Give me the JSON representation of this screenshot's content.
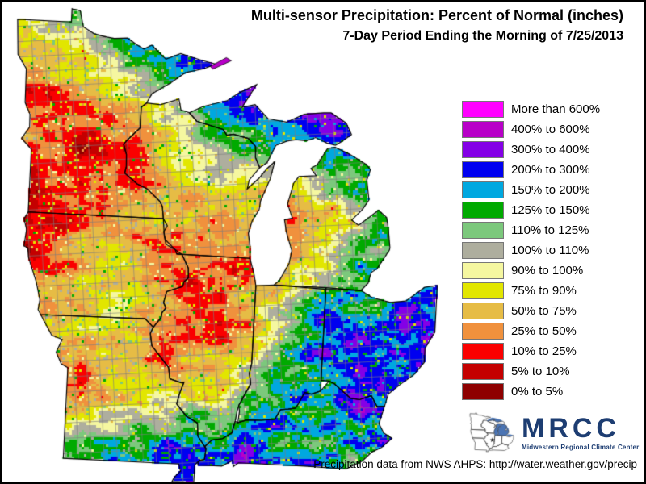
{
  "title": "Multi-sensor Precipitation: Percent of Normal (inches)",
  "subtitle": "7-Day Period Ending the Morning of 7/25/2013",
  "footer": "Precipitation data from NWS AHPS:  http://water.weather.gov/precip",
  "logo": {
    "name": "MRCC",
    "caption": "Midwestern Regional Climate Center",
    "color": "#1d3d72",
    "lake_color": "#4a74b4"
  },
  "legend": {
    "items": [
      {
        "label": "More than 600%",
        "color": "#FF00FF"
      },
      {
        "label": "400% to 600%",
        "color": "#B800C8"
      },
      {
        "label": "300% to 400%",
        "color": "#8400E6"
      },
      {
        "label": "200% to 300%",
        "color": "#0000F0"
      },
      {
        "label": "150% to 200%",
        "color": "#00A8E0"
      },
      {
        "label": "125% to 150%",
        "color": "#00AA00"
      },
      {
        "label": "110% to 125%",
        "color": "#7CC87C"
      },
      {
        "label": "100% to 110%",
        "color": "#AEAE9E"
      },
      {
        "label": "90% to 100%",
        "color": "#F5F7A0"
      },
      {
        "label": "75% to 90%",
        "color": "#E2E600"
      },
      {
        "label": "50% to 75%",
        "color": "#E6BC45"
      },
      {
        "label": "25% to 50%",
        "color": "#F0913D"
      },
      {
        "label": "10% to 25%",
        "color": "#FA0000"
      },
      {
        "label": "5% to 10%",
        "color": "#C40000"
      },
      {
        "label": "0% to 5%",
        "color": "#8E0000"
      }
    ],
    "swatch_border": "#777777"
  },
  "map": {
    "type": "choropleth-raster",
    "region": "US Midwest: MN, WI, MI, IA, IL, IN, OH, MO, KY; Great Lakes shown white",
    "county_line_color": "#7d7d7d",
    "state_line_color": "#000000",
    "anchor_format": "[lon, lat, legend_class_index_mean, spread]",
    "anchors": [
      [
        -96.9,
        48.7,
        10.5,
        2
      ],
      [
        -95.6,
        48.85,
        3.8,
        1.6
      ],
      [
        -93.6,
        48.45,
        4.6,
        2
      ],
      [
        -90.6,
        47.95,
        2.8,
        1.1
      ],
      [
        -91.7,
        47.3,
        3.4,
        1.6
      ],
      [
        -92.5,
        46.9,
        4.2,
        1.6
      ],
      [
        -96.6,
        47.6,
        12.3,
        1.1
      ],
      [
        -95.4,
        47.2,
        12.6,
        1.4
      ],
      [
        -96.35,
        45.9,
        12.8,
        1.2
      ],
      [
        -94.9,
        46.2,
        13.2,
        1.2
      ],
      [
        -93.9,
        46.2,
        14,
        0.8
      ],
      [
        -96.2,
        46.1,
        5.5,
        1.2
      ],
      [
        -96.1,
        44.7,
        12.8,
        1.2
      ],
      [
        -94.3,
        44.9,
        12.2,
        1.5
      ],
      [
        -93,
        45.2,
        13.6,
        1.1
      ],
      [
        -96,
        43.9,
        13.2,
        1.1
      ],
      [
        -95.5,
        43.8,
        13.6,
        0.9
      ],
      [
        -94,
        43.8,
        11.6,
        1.6
      ],
      [
        -92.3,
        43.9,
        12,
        1.5
      ],
      [
        -92.2,
        46.3,
        13.6,
        0.9
      ],
      [
        -91.3,
        45.8,
        12.8,
        1.2
      ],
      [
        -90,
        45.6,
        12.2,
        1.4
      ],
      [
        -89.8,
        45.95,
        4.2,
        1.8
      ],
      [
        -88.6,
        45.7,
        3.5,
        1.8
      ],
      [
        -91.5,
        45,
        12.6,
        1.3
      ],
      [
        -90.3,
        44.9,
        12.4,
        1.4
      ],
      [
        -89.3,
        44.9,
        10.8,
        1.8
      ],
      [
        -89.2,
        44.6,
        3.8,
        1.4
      ],
      [
        -87.6,
        44.6,
        12.6,
        1.4
      ],
      [
        -91.1,
        43.4,
        10.6,
        1.9
      ],
      [
        -89.8,
        43.3,
        11.4,
        1.8
      ],
      [
        -89.5,
        43.6,
        7,
        2.6
      ],
      [
        -88.4,
        43.3,
        11.8,
        1.7
      ],
      [
        -87.95,
        42.8,
        12.2,
        1.5
      ],
      [
        -90,
        46.4,
        2.6,
        1
      ],
      [
        -89,
        46.2,
        2.2,
        1
      ],
      [
        -88,
        46.3,
        1.6,
        0.9
      ],
      [
        -86.6,
        46.3,
        0.8,
        0.8
      ],
      [
        -85.6,
        46.35,
        2,
        1
      ],
      [
        -84.8,
        46.35,
        2.8,
        1.2
      ],
      [
        -88.3,
        47.15,
        4.5,
        2
      ],
      [
        -89.3,
        48,
        1,
        0.5
      ],
      [
        -84.9,
        45.4,
        3.2,
        1.3
      ],
      [
        -83.8,
        45,
        3.8,
        1.5
      ],
      [
        -86.1,
        44.35,
        13.5,
        1
      ],
      [
        -84.7,
        44.3,
        4.5,
        2
      ],
      [
        -83.6,
        43.85,
        4.2,
        1.8
      ],
      [
        -86.15,
        43.55,
        13,
        1.2
      ],
      [
        -84.9,
        43.4,
        10.8,
        2
      ],
      [
        -83.9,
        42.9,
        9.5,
        2.3
      ],
      [
        -86.1,
        42.45,
        12.9,
        1.3
      ],
      [
        -84.7,
        41.95,
        2.6,
        1.5
      ],
      [
        -83.5,
        42.1,
        6,
        2.6
      ],
      [
        -95.9,
        42.9,
        13.5,
        1.2
      ],
      [
        -94.9,
        42.4,
        12.3,
        1.4
      ],
      [
        -93.4,
        43.05,
        4.5,
        1.8
      ],
      [
        -92.4,
        42.9,
        11.3,
        1.5
      ],
      [
        -91.8,
        42.5,
        11.2,
        1.5
      ],
      [
        -95.3,
        41.6,
        11.3,
        1.5
      ],
      [
        -93.8,
        41.8,
        11,
        1.5
      ],
      [
        -92.2,
        41.6,
        11,
        1.7
      ],
      [
        -90.9,
        41.8,
        11.5,
        1.5
      ],
      [
        -93.9,
        40.95,
        3.8,
        1.8
      ],
      [
        -92.6,
        40.85,
        4.6,
        2
      ],
      [
        -95.2,
        40.9,
        10.5,
        2
      ],
      [
        -89.9,
        42.1,
        12,
        1.4
      ],
      [
        -88.3,
        41.9,
        12.2,
        1.4
      ],
      [
        -90.3,
        40.9,
        11.2,
        1.6
      ],
      [
        -88.8,
        40.9,
        11.6,
        1.6
      ],
      [
        -89.8,
        40.1,
        12.7,
        1.4
      ],
      [
        -89.9,
        39.5,
        13.8,
        1
      ],
      [
        -88.6,
        39.7,
        12,
        1.6
      ],
      [
        -90.5,
        39.3,
        11.3,
        1.6
      ],
      [
        -89.3,
        38.9,
        10.5,
        2
      ],
      [
        -88.3,
        38.6,
        9.2,
        2.2
      ],
      [
        -89.9,
        38.2,
        3.5,
        2
      ],
      [
        -89.2,
        37.6,
        2.2,
        1.3
      ],
      [
        -88.5,
        37.5,
        2.8,
        1.5
      ],
      [
        -87.2,
        41.45,
        11.3,
        1.6
      ],
      [
        -85.9,
        41.55,
        8,
        2.6
      ],
      [
        -85,
        41.4,
        3.4,
        1.8
      ],
      [
        -87.3,
        40.4,
        10.8,
        1.8
      ],
      [
        -86,
        40.3,
        3.4,
        1.8
      ],
      [
        -85,
        40.2,
        3,
        1.5
      ],
      [
        -87.3,
        39.2,
        9.5,
        2.4
      ],
      [
        -86.3,
        39,
        2.8,
        1.5
      ],
      [
        -85.3,
        38.9,
        2.5,
        1.5
      ],
      [
        -86.8,
        38.2,
        2,
        1.3
      ],
      [
        -84.2,
        40.9,
        3.2,
        1.5
      ],
      [
        -82.9,
        40.9,
        2.6,
        1.4
      ],
      [
        -81.4,
        41.4,
        3.6,
        1.8
      ],
      [
        -80.8,
        41.8,
        1.2,
        1
      ],
      [
        -80.9,
        40.4,
        2.6,
        1.5
      ],
      [
        -83.3,
        41.3,
        2.2,
        1.2
      ],
      [
        -83.3,
        39.8,
        2.5,
        1.4
      ],
      [
        -82.2,
        39.8,
        2.2,
        1.4
      ],
      [
        -84,
        39.3,
        2.8,
        1.5
      ],
      [
        -82.8,
        38.9,
        1.8,
        1.3
      ],
      [
        -82.4,
        40.5,
        4.5,
        2.4
      ],
      [
        -94.3,
        39.9,
        11,
        1.6
      ],
      [
        -92.8,
        40,
        11.3,
        1.6
      ],
      [
        -91.6,
        39.9,
        12,
        1.5
      ],
      [
        -94.1,
        38.9,
        12.3,
        1.5
      ],
      [
        -93.9,
        38.25,
        13.5,
        1.1
      ],
      [
        -92.6,
        38.5,
        12,
        1.6
      ],
      [
        -91.3,
        38.4,
        10.8,
        2
      ],
      [
        -90.5,
        38.5,
        10,
        2.2
      ],
      [
        -94.3,
        37.6,
        12,
        1.8
      ],
      [
        -93,
        37.5,
        2.8,
        1.8
      ],
      [
        -94.1,
        36.85,
        0.6,
        0.9
      ],
      [
        -92.2,
        37,
        1.6,
        1.3
      ],
      [
        -90.8,
        37.2,
        2.5,
        1.5
      ],
      [
        -89.8,
        36.8,
        2.2,
        1.3
      ],
      [
        -90,
        36.25,
        1.8,
        1.3
      ],
      [
        -88.7,
        36.9,
        2,
        1.3
      ],
      [
        -87.6,
        37.3,
        2.8,
        1.6
      ],
      [
        -86.4,
        37.3,
        4,
        2
      ],
      [
        -85,
        37,
        8,
        2.6
      ],
      [
        -84.4,
        37.4,
        5,
        2.4
      ],
      [
        -83.3,
        37.4,
        4,
        2.2
      ],
      [
        -83.9,
        38,
        3,
        1.6
      ],
      [
        -85.6,
        38.2,
        3.2,
        1.6
      ],
      [
        -82.8,
        38.2,
        2.6,
        1.5
      ]
    ]
  }
}
